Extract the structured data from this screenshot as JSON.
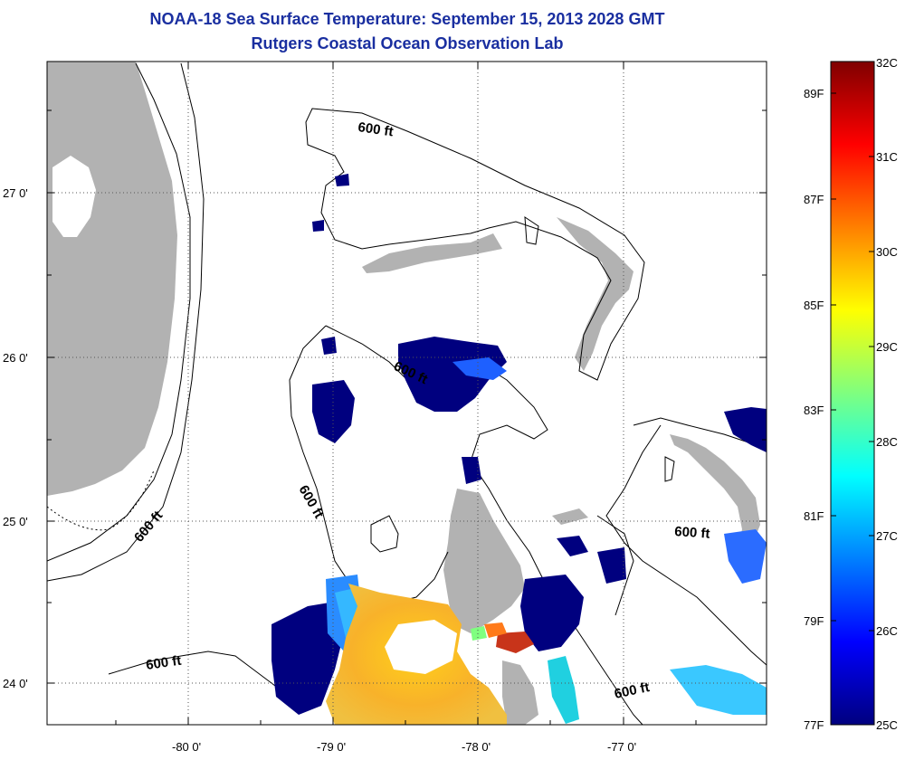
{
  "title": "NOAA-18 Sea Surface Temperature:  September 15, 2013 2028 GMT",
  "subtitle": "Rutgers Coastal Ocean Observation Lab",
  "map": {
    "lat_labels": [
      "27 0'",
      "26 0'",
      "25 0'",
      "24 0'"
    ],
    "lon_labels": [
      "-80 0'",
      "-79 0'",
      "-78 0'",
      "-77 0'"
    ],
    "grid": true,
    "land_color": "#b2b2b2",
    "cloud_color": "#ffffff"
  },
  "contours": {
    "depth_label": "600 ft",
    "labels": [
      "600 ft",
      "600 ft",
      "600 ft",
      "600 ft",
      "600 ft",
      "600 ft"
    ]
  },
  "colorbar": {
    "celsius": [
      "32C",
      "31C",
      "30C",
      "29C",
      "28C",
      "27C",
      "26C",
      "25C"
    ],
    "fahrenheit": [
      "89F",
      "87F",
      "85F",
      "83F",
      "81F",
      "79F",
      "77F"
    ],
    "colormap": "jet",
    "min_c": 25,
    "max_c": 32
  }
}
